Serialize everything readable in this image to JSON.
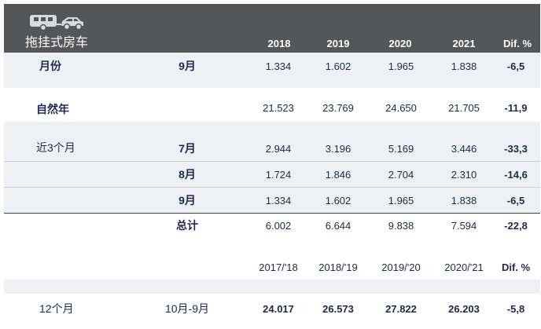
{
  "header": {
    "icon": "caravan-car-icon",
    "title": "拖挂式房车",
    "columns": [
      "2018",
      "2019",
      "2020",
      "2021",
      "Dif. %"
    ]
  },
  "month_row": {
    "label": "月份",
    "period": "9月",
    "values": [
      "1.334",
      "1.602",
      "1.965",
      "1.838",
      "-6,5"
    ]
  },
  "year_row": {
    "label": "自然年",
    "values": [
      "21.523",
      "23.769",
      "24.650",
      "21.705",
      "-11,9"
    ]
  },
  "quarter": {
    "label": "近3个月",
    "rows": [
      {
        "period": "7月",
        "values": [
          "2.944",
          "3.196",
          "5.169",
          "3.446",
          "-33,3"
        ]
      },
      {
        "period": "8月",
        "values": [
          "1.724",
          "1.846",
          "2.704",
          "2.310",
          "-14,6"
        ]
      },
      {
        "period": "9月",
        "values": [
          "1.334",
          "1.602",
          "1.965",
          "1.838",
          "-6,5"
        ]
      }
    ],
    "total": {
      "label": "总计",
      "values": [
        "6.002",
        "6.644",
        "9.838",
        "7.594",
        "-22,8"
      ]
    }
  },
  "season_header": {
    "columns": [
      "2017/'18",
      "2018/'19",
      "2019/'20",
      "2020/'21",
      "Dif. %"
    ]
  },
  "season_row": {
    "label": "12个月",
    "period": "10月-9月",
    "values": [
      "24.017",
      "26.573",
      "27.822",
      "26.203",
      "-5,8"
    ]
  }
}
